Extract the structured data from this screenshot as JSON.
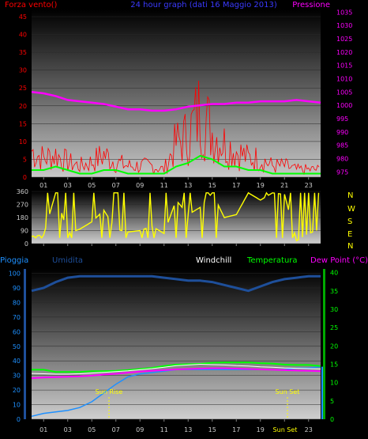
{
  "header": {
    "left": "Forza vento()",
    "center": "24 hour graph (dati 16 Maggio 2013)",
    "right": "Pressione"
  },
  "colors": {
    "wind": "#ff0000",
    "gust": "#00ff00",
    "pressure": "#ff00ff",
    "direction": "#ffff00",
    "humidity": "#1e4f9a",
    "rain": "#1e90ff",
    "temperature": "#00ff00",
    "dewpoint": "#ff00ff",
    "windchill": "#ffffff",
    "axis_wind": "#ff0000",
    "axis_press": "#ff00ff",
    "axis_hum": "#1e90ff",
    "axis_temp": "#00ff00",
    "sun_markers": "#ffff00"
  },
  "x_ticks": [
    "01",
    "03",
    "05",
    "07",
    "09",
    "11",
    "13",
    "15",
    "17",
    "19",
    "21",
    "23"
  ],
  "chart_data": [
    {
      "type": "line",
      "title": "24 hour graph (dati 16 Maggio 2013)",
      "x": [
        0,
        1,
        2,
        3,
        4,
        5,
        6,
        7,
        8,
        9,
        10,
        11,
        12,
        13,
        14,
        15,
        16,
        17,
        18,
        19,
        20,
        21,
        22,
        23,
        24
      ],
      "y_left_label": "Forza vento()",
      "y_left_ticks": [
        0,
        5,
        10,
        15,
        20,
        25,
        30,
        35,
        40,
        45
      ],
      "y_left_lim": [
        0,
        47
      ],
      "y_right_label": "Pressione",
      "y_right_ticks": [
        975,
        980,
        985,
        990,
        995,
        1000,
        1005,
        1010,
        1015,
        1020,
        1025,
        1030,
        1035
      ],
      "y_right_lim": [
        973,
        1036
      ],
      "series": [
        {
          "values": [
            7,
            5,
            6,
            4,
            3,
            4,
            6,
            4,
            3,
            3,
            3,
            2,
            9,
            11,
            18,
            12,
            9,
            7,
            5,
            5,
            3,
            3,
            2,
            2,
            2
          ]
        },
        {
          "values": [
            2,
            2,
            3,
            2,
            1,
            1,
            2,
            2,
            1,
            1,
            1,
            1,
            3,
            4,
            6,
            5,
            3,
            3,
            2,
            2,
            1,
            1,
            1,
            1,
            1
          ]
        },
        {
          "values": [
            1005,
            1004.5,
            1003.5,
            1002,
            1001.5,
            1001,
            1000.5,
            999.5,
            998.5,
            998.5,
            998,
            998,
            998.5,
            999.5,
            1000,
            1000.5,
            1000.5,
            1001,
            1001,
            1001.5,
            1001.5,
            1001.5,
            1002,
            1001.5,
            1001
          ]
        }
      ]
    },
    {
      "type": "scatter",
      "x": [
        0,
        1,
        2,
        3,
        4,
        5,
        6,
        7,
        8,
        9,
        10,
        11,
        12,
        13,
        14,
        15,
        16,
        17,
        18,
        19,
        20,
        21,
        22,
        23,
        24
      ],
      "labels_right": [
        "N",
        "W",
        "S",
        "E",
        "N"
      ],
      "y_ticks": [
        0,
        90,
        180,
        270,
        360
      ],
      "y_lim": [
        0,
        360
      ],
      "series": [
        {
          "values": [
            50,
            60,
            350,
            70,
            100,
            150,
            230,
            100,
            80,
            90,
            120,
            70,
            300,
            200,
            250,
            350,
            180,
            200,
            350,
            300,
            350,
            340,
            20,
            70,
            100
          ]
        }
      ]
    },
    {
      "type": "line",
      "x": [
        0,
        1,
        2,
        3,
        4,
        5,
        6,
        7,
        8,
        9,
        10,
        11,
        12,
        13,
        14,
        15,
        16,
        17,
        18,
        19,
        20,
        21,
        22,
        23,
        24
      ],
      "y_left_ticks": [
        0,
        10,
        20,
        30,
        40,
        50,
        60,
        70,
        80,
        90,
        100
      ],
      "y_left_lim": [
        0,
        103
      ],
      "y_right_ticks": [
        0,
        5,
        10,
        15,
        20,
        25,
        30,
        35,
        40
      ],
      "y_right_lim": [
        0,
        41
      ],
      "legend": [
        "Pioggia",
        "Umidita",
        "Windchill",
        "Temperatura",
        "Dew Point (°C)"
      ],
      "annotations": [
        "Sun Rise",
        "Sun Set"
      ],
      "series": [
        {
          "values": [
            2,
            4,
            5,
            6,
            8,
            12,
            18,
            24,
            29,
            31,
            32,
            33,
            34,
            34,
            34,
            34,
            34,
            34,
            34,
            34,
            34,
            34,
            35,
            35,
            36
          ]
        },
        {
          "values": [
            88,
            90,
            94,
            97,
            98,
            98,
            98,
            98,
            98,
            98,
            98,
            97,
            96,
            95,
            95,
            94,
            92,
            90,
            88,
            91,
            94,
            96,
            97,
            98,
            98
          ]
        },
        {
          "values": [
            12.5,
            12.4,
            12.3,
            12.3,
            12.4,
            12.6,
            12.8,
            13,
            13.2,
            13.5,
            13.8,
            14.2,
            14.6,
            14.8,
            15,
            14.9,
            14.8,
            14.6,
            14.5,
            14.3,
            14.2,
            14,
            13.9,
            13.8,
            13.7
          ]
        },
        {
          "values": [
            13.5,
            13.5,
            12.9,
            12.9,
            12.9,
            13.1,
            13.1,
            13.2,
            13.4,
            13.7,
            14,
            14.5,
            14.9,
            15,
            15.1,
            15.4,
            15.5,
            15.5,
            15.5,
            15.3,
            15.2,
            14.9,
            14.8,
            14.8,
            14.5
          ]
        },
        {
          "values": [
            11.2,
            11.4,
            11.5,
            11.6,
            11.7,
            11.9,
            12.2,
            12.4,
            12.7,
            13,
            13.2,
            13.4,
            13.6,
            13.7,
            13.8,
            13.9,
            13.9,
            13.8,
            13.7,
            13.6,
            13.5,
            13.4,
            13.3,
            13.2,
            13.1
          ]
        }
      ]
    }
  ],
  "panel3": {
    "leg_rain": "Pioggia",
    "leg_hum": "Umidita",
    "leg_wc": "Windchill",
    "leg_temp": "Temperatura",
    "leg_dew": "Dew Point (°C)",
    "sunrise": "Sun Rise",
    "sunset": "Sun Set",
    "sun_tick": "Sun Set"
  },
  "panel2": {
    "dir_labels": [
      "N",
      "W",
      "S",
      "E",
      "N"
    ]
  }
}
